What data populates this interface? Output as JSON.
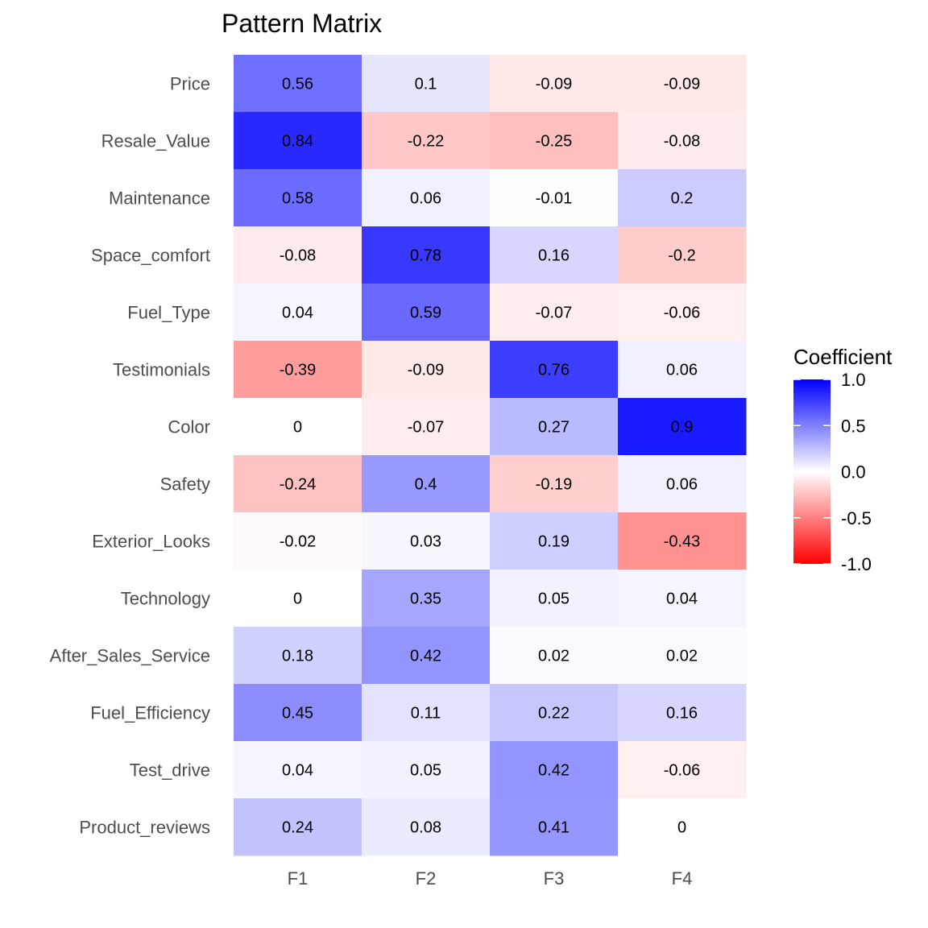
{
  "chart_data": {
    "type": "heatmap",
    "title": "Pattern Matrix",
    "xlabel": "",
    "ylabel": "",
    "x_categories": [
      "F1",
      "F2",
      "F3",
      "F4"
    ],
    "y_categories": [
      "Price",
      "Resale_Value",
      "Maintenance",
      "Space_comfort",
      "Fuel_Type",
      "Testimonials",
      "Color",
      "Safety",
      "Exterior_Looks",
      "Technology",
      "After_Sales_Service",
      "Fuel_Efficiency",
      "Test_drive",
      "Product_reviews"
    ],
    "values": [
      [
        0.56,
        0.1,
        -0.09,
        -0.09
      ],
      [
        0.84,
        -0.22,
        -0.25,
        -0.08
      ],
      [
        0.58,
        0.06,
        -0.01,
        0.2
      ],
      [
        -0.08,
        0.78,
        0.16,
        -0.2
      ],
      [
        0.04,
        0.59,
        -0.07,
        -0.06
      ],
      [
        -0.39,
        -0.09,
        0.76,
        0.06
      ],
      [
        0,
        -0.07,
        0.27,
        0.9
      ],
      [
        -0.24,
        0.4,
        -0.19,
        0.06
      ],
      [
        -0.02,
        0.03,
        0.19,
        -0.43
      ],
      [
        0,
        0.35,
        0.05,
        0.04
      ],
      [
        0.18,
        0.42,
        0.02,
        0.02
      ],
      [
        0.45,
        0.11,
        0.22,
        0.16
      ],
      [
        0.04,
        0.05,
        0.42,
        -0.06
      ],
      [
        0.24,
        0.08,
        0.41,
        0
      ]
    ],
    "value_labels": [
      [
        "0.56",
        "0.1",
        "-0.09",
        "-0.09"
      ],
      [
        "0.84",
        "-0.22",
        "-0.25",
        "-0.08"
      ],
      [
        "0.58",
        "0.06",
        "-0.01",
        "0.2"
      ],
      [
        "-0.08",
        "0.78",
        "0.16",
        "-0.2"
      ],
      [
        "0.04",
        "0.59",
        "-0.07",
        "-0.06"
      ],
      [
        "-0.39",
        "-0.09",
        "0.76",
        "0.06"
      ],
      [
        "0",
        "-0.07",
        "0.27",
        "0.9"
      ],
      [
        "-0.24",
        "0.4",
        "-0.19",
        "0.06"
      ],
      [
        "-0.02",
        "0.03",
        "0.19",
        "-0.43"
      ],
      [
        "0",
        "0.35",
        "0.05",
        "0.04"
      ],
      [
        "0.18",
        "0.42",
        "0.02",
        "0.02"
      ],
      [
        "0.45",
        "0.11",
        "0.22",
        "0.16"
      ],
      [
        "0.04",
        "0.05",
        "0.42",
        "-0.06"
      ],
      [
        "0.24",
        "0.08",
        "0.41",
        "0"
      ]
    ],
    "color_scale": {
      "low": "#ff0000",
      "mid": "#ffffff",
      "high": "#0000ff",
      "limits": [
        -1,
        1
      ]
    },
    "legend": {
      "title": "Coefficient",
      "position": "right",
      "ticks": [
        1.0,
        0.5,
        0.0,
        -0.5,
        -1.0
      ],
      "tick_labels": [
        "1.0",
        "0.5",
        "0.0",
        "-0.5",
        "-1.0"
      ]
    },
    "grid": false
  }
}
